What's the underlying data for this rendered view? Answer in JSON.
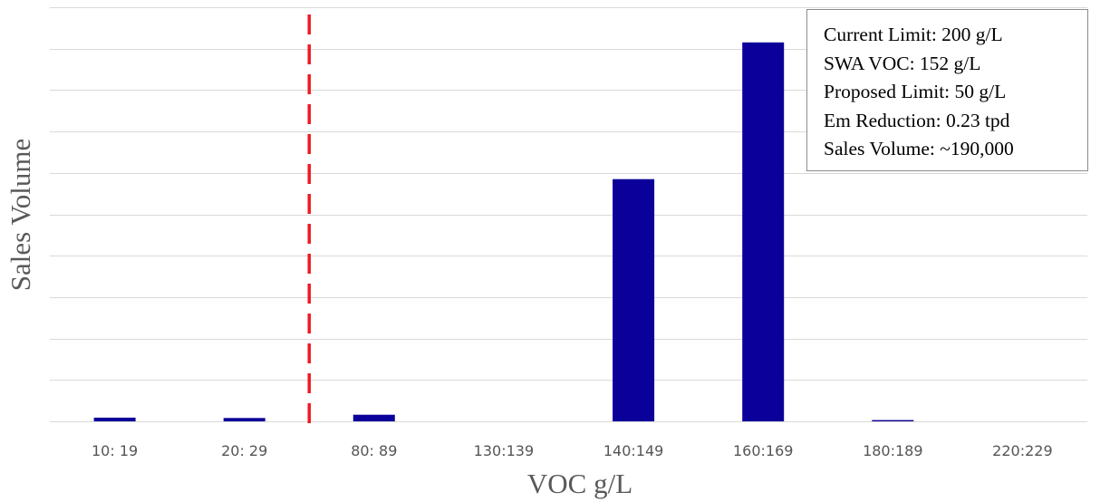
{
  "chart_data": {
    "type": "bar",
    "title": "",
    "xlabel": "VOC g/L",
    "ylabel": "Sales Volume",
    "categories": [
      "10: 19",
      "20: 29",
      "80: 89",
      "130:139",
      "140:149",
      "160:169",
      "180:189",
      "220:229"
    ],
    "series": [
      {
        "values": [
          0.9,
          0.8,
          1.6,
          0,
          58.5,
          91.5,
          0.3,
          0
        ]
      }
    ],
    "ylim": [
      0,
      100
    ],
    "y_gridlines": 10,
    "y_tick_labels_shown": false,
    "grid": true,
    "legend": "none",
    "bar_color": "#0b0099",
    "limit_line": {
      "after_category_index": 1,
      "style": "dashed",
      "color": "#ee1c25"
    }
  },
  "info_box": {
    "lines": [
      "Current Limit: 200 g/L",
      "SWA VOC: 152 g/L",
      "Proposed Limit: 50 g/L",
      "Em Reduction: 0.23 tpd",
      "Sales Volume: ~190,000"
    ],
    "placement": "top-right"
  }
}
